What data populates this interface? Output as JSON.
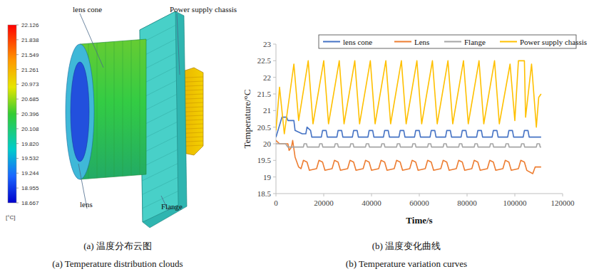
{
  "chart_data": {
    "type": "line",
    "x_label": "Time/s",
    "y_label": "Temperature/°C",
    "xlim": [
      0,
      120000
    ],
    "xticks": [
      0,
      20000,
      40000,
      60000,
      80000,
      100000,
      120000
    ],
    "ylim": [
      18.5,
      23
    ],
    "yticks": [
      18.5,
      19,
      19.5,
      20,
      20.5,
      21,
      21.5,
      22,
      22.5,
      23
    ],
    "grid": false,
    "legend": "top",
    "series": [
      {
        "name": "lens cone",
        "color": "#4472c4",
        "x": [
          0,
          2500,
          4500,
          5000,
          7500,
          8000,
          11000,
          12500,
          13000,
          14500,
          15000,
          19000,
          19500,
          21000,
          21500,
          25500,
          26000,
          27500,
          28000,
          32000,
          32500,
          34000,
          34500,
          38500,
          39000,
          40500,
          41000,
          45000,
          45500,
          47000,
          47500,
          51500,
          52000,
          53500,
          54000,
          58000,
          58500,
          60000,
          60500,
          64500,
          65000,
          66500,
          67000,
          71000,
          71500,
          73000,
          73500,
          77500,
          78000,
          79500,
          80000,
          84000,
          84500,
          86000,
          86500,
          90500,
          91000,
          92500,
          93000,
          97000,
          97500,
          99000,
          99500,
          103500,
          104000,
          105500,
          106000,
          111000
        ],
        "values": [
          20.2,
          20.8,
          20.8,
          20.7,
          20.7,
          20.4,
          20.3,
          20.3,
          20.5,
          20.4,
          20.2,
          20.2,
          20.4,
          20.4,
          20.2,
          20.2,
          20.4,
          20.4,
          20.2,
          20.2,
          20.4,
          20.4,
          20.2,
          20.2,
          20.4,
          20.4,
          20.2,
          20.2,
          20.4,
          20.4,
          20.2,
          20.2,
          20.4,
          20.4,
          20.2,
          20.2,
          20.4,
          20.4,
          20.2,
          20.2,
          20.4,
          20.4,
          20.2,
          20.2,
          20.4,
          20.4,
          20.2,
          20.2,
          20.4,
          20.4,
          20.2,
          20.2,
          20.4,
          20.4,
          20.2,
          20.2,
          20.4,
          20.4,
          20.2,
          20.2,
          20.4,
          20.4,
          20.2,
          20.2,
          20.4,
          20.4,
          20.2,
          20.2
        ]
      },
      {
        "name": "Lens",
        "color": "#ed7d31",
        "x": [
          0,
          1500,
          5000,
          5500,
          6500,
          7000,
          8000,
          9500,
          10500,
          11500,
          13000,
          14000,
          17000,
          18000,
          19500,
          20500,
          23500,
          24500,
          26000,
          27000,
          30000,
          31000,
          32500,
          33500,
          36500,
          37500,
          39000,
          40000,
          43000,
          44000,
          45500,
          46500,
          49500,
          50500,
          52000,
          53000,
          56000,
          57000,
          58500,
          59500,
          62500,
          63500,
          65000,
          66000,
          69000,
          70000,
          71500,
          72500,
          75500,
          76500,
          78000,
          79000,
          82000,
          83000,
          84500,
          85500,
          88500,
          89500,
          91000,
          92000,
          95000,
          96000,
          97500,
          98500,
          101500,
          102500,
          104000,
          105000,
          107500,
          108500,
          111000
        ],
        "values": [
          20.1,
          20.0,
          20.0,
          19.8,
          19.9,
          20.1,
          19.6,
          19.3,
          19.25,
          19.5,
          19.45,
          19.2,
          19.25,
          19.5,
          19.45,
          19.2,
          19.25,
          19.5,
          19.45,
          19.2,
          19.25,
          19.5,
          19.45,
          19.2,
          19.25,
          19.5,
          19.45,
          19.2,
          19.25,
          19.5,
          19.45,
          19.2,
          19.25,
          19.5,
          19.45,
          19.2,
          19.25,
          19.5,
          19.45,
          19.2,
          19.25,
          19.5,
          19.45,
          19.2,
          19.25,
          19.5,
          19.45,
          19.2,
          19.25,
          19.5,
          19.45,
          19.2,
          19.25,
          19.5,
          19.45,
          19.2,
          19.25,
          19.5,
          19.45,
          19.2,
          19.25,
          19.5,
          19.45,
          19.2,
          19.25,
          19.5,
          19.45,
          19.2,
          19.1,
          19.3,
          19.3
        ]
      },
      {
        "name": "Flange",
        "color": "#a5a5a5",
        "x": [
          0,
          4000,
          5000,
          11500,
          11800,
          12800,
          13100,
          18000,
          18300,
          19300,
          19600,
          24500,
          24800,
          25800,
          26100,
          31000,
          31300,
          32300,
          32600,
          37500,
          37800,
          38800,
          39100,
          44000,
          44300,
          45300,
          45600,
          50500,
          50800,
          51800,
          52100,
          57000,
          57300,
          58300,
          58600,
          63500,
          63800,
          64800,
          65100,
          70000,
          70300,
          71300,
          71600,
          76500,
          76800,
          77800,
          78100,
          83000,
          83300,
          84300,
          84600,
          89500,
          89800,
          90800,
          91100,
          96000,
          96300,
          97300,
          97600,
          102500,
          102800,
          103800,
          104100,
          109000,
          109300,
          110300,
          110600,
          111000
        ],
        "values": [
          20.0,
          20.0,
          19.9,
          19.9,
          20.0,
          20.0,
          19.9,
          19.9,
          20.0,
          20.0,
          19.9,
          19.9,
          20.0,
          20.0,
          19.9,
          19.9,
          20.0,
          20.0,
          19.9,
          19.9,
          20.0,
          20.0,
          19.9,
          19.9,
          20.0,
          20.0,
          19.9,
          19.9,
          20.0,
          20.0,
          19.9,
          19.9,
          20.0,
          20.0,
          19.9,
          19.9,
          20.0,
          20.0,
          19.9,
          19.9,
          20.0,
          20.0,
          19.9,
          19.9,
          20.0,
          20.0,
          19.9,
          19.9,
          20.0,
          20.0,
          19.9,
          19.9,
          20.0,
          20.0,
          19.9,
          19.9,
          20.0,
          20.0,
          19.9,
          19.9,
          20.0,
          20.0,
          19.9,
          19.9,
          20.0,
          20.0,
          19.9,
          19.9
        ]
      },
      {
        "name": "Power supply chassis",
        "color": "#ffc000",
        "x": [
          0,
          1500,
          3500,
          7500,
          9500,
          13500,
          15500,
          20000,
          22000,
          26500,
          28500,
          33000,
          35000,
          39500,
          41500,
          46000,
          48000,
          52500,
          54500,
          59000,
          61000,
          65500,
          67500,
          72000,
          74000,
          78500,
          80500,
          85000,
          87000,
          91500,
          93500,
          98000,
          100000,
          101500,
          104000,
          104500,
          107000,
          109000,
          110000,
          111000
        ],
        "values": [
          20.4,
          21.7,
          20.3,
          22.4,
          20.7,
          22.5,
          20.6,
          22.5,
          20.6,
          22.5,
          20.6,
          22.5,
          20.6,
          22.5,
          20.6,
          22.5,
          20.6,
          22.5,
          20.6,
          22.5,
          20.6,
          22.5,
          20.6,
          22.5,
          20.6,
          22.5,
          20.6,
          22.5,
          20.6,
          22.5,
          20.6,
          22.4,
          20.7,
          22.5,
          22.5,
          20.8,
          22.4,
          20.5,
          21.4,
          21.5
        ]
      }
    ]
  },
  "model_view": {
    "labels": [
      "lens cone",
      "Power supply chassis",
      "lens",
      "Flange"
    ],
    "colorbar": {
      "range": [
        18.667,
        22.126
      ],
      "unit": "[°C]",
      "ticks": [
        22.126,
        21.838,
        21.549,
        21.261,
        20.973,
        20.685,
        20.396,
        20.108,
        {
          "value": 19.82,
          "label": "19.820"
        },
        19.532,
        19.244,
        18.955,
        18.667
      ]
    }
  },
  "captions": [
    "(a)  温度分布云图",
    "(a) Temperature distribution clouds",
    "(b)  温度变化曲线",
    "(b) Temperature variation curves"
  ]
}
